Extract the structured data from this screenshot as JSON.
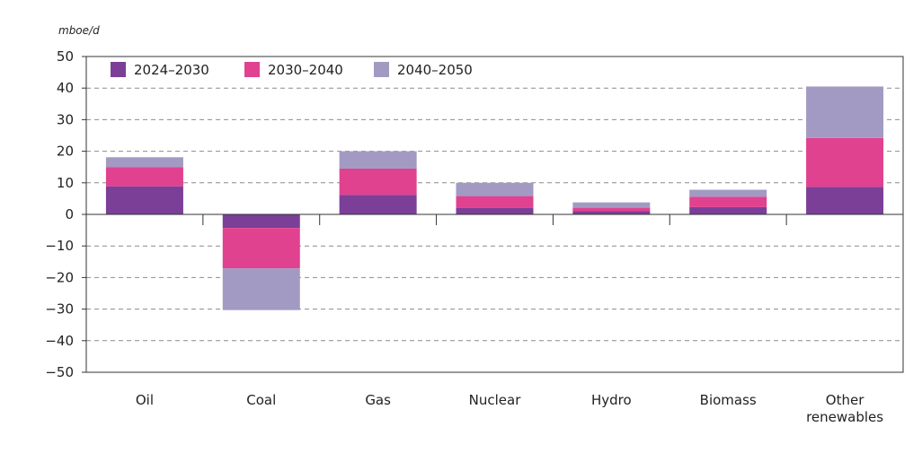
{
  "chart_data": {
    "type": "bar",
    "stacked": true,
    "unit_label": "mboe/d",
    "title": "",
    "xlabel": "",
    "ylabel": "",
    "ylim": [
      -50,
      50
    ],
    "yticks": [
      50,
      40,
      30,
      20,
      10,
      0,
      -10,
      -20,
      -30,
      -40,
      -50
    ],
    "grid": true,
    "legend_position": "top-left",
    "categories": [
      [
        "Oil"
      ],
      [
        "Coal"
      ],
      [
        "Gas"
      ],
      [
        "Nuclear"
      ],
      [
        "Hydro"
      ],
      [
        "Biomass"
      ],
      [
        "Other",
        "renewables"
      ]
    ],
    "series": [
      {
        "name": "2024–2030",
        "color": "#7b3f98",
        "values": [
          8.9,
          -4.3,
          6.2,
          2.0,
          1.0,
          2.3,
          8.7
        ]
      },
      {
        "name": "2030–2040",
        "color": "#e0428f",
        "values": [
          6.1,
          -12.8,
          8.3,
          3.8,
          1.1,
          3.3,
          15.5
        ]
      },
      {
        "name": "2040–2050",
        "color": "#a39ac3",
        "values": [
          3.1,
          -13.2,
          5.5,
          4.2,
          1.7,
          2.2,
          16.3
        ]
      }
    ]
  }
}
